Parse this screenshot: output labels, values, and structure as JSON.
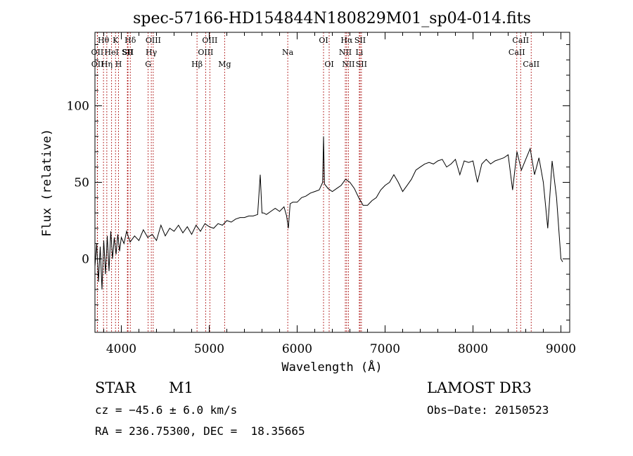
{
  "chart_data": {
    "type": "line",
    "title": "spec-57166-HD154844N180829M01_sp04-014.fits",
    "xlabel": "Wavelength (Å)",
    "ylabel": "Flux (relative)",
    "xlim": [
      3700,
      9100
    ],
    "ylim": [
      -48,
      148
    ],
    "xticks": [
      4000,
      5000,
      6000,
      7000,
      8000,
      9000
    ],
    "yticks": [
      0,
      50,
      100
    ],
    "line_color": "#000000",
    "marker_color": "#b22222",
    "series": [
      {
        "name": "flux",
        "x": [
          3700,
          3720,
          3740,
          3760,
          3780,
          3800,
          3820,
          3840,
          3860,
          3880,
          3900,
          3920,
          3940,
          3960,
          3980,
          4000,
          4030,
          4060,
          4100,
          4150,
          4200,
          4250,
          4300,
          4350,
          4400,
          4450,
          4500,
          4550,
          4600,
          4650,
          4700,
          4750,
          4800,
          4850,
          4900,
          4950,
          5000,
          5050,
          5100,
          5150,
          5200,
          5250,
          5300,
          5350,
          5400,
          5450,
          5500,
          5550,
          5580,
          5600,
          5620,
          5650,
          5700,
          5750,
          5800,
          5850,
          5880,
          5900,
          5920,
          5950,
          6000,
          6050,
          6100,
          6150,
          6200,
          6250,
          6290,
          6300,
          6310,
          6350,
          6400,
          6450,
          6500,
          6550,
          6600,
          6650,
          6700,
          6750,
          6800,
          6850,
          6900,
          6950,
          7000,
          7050,
          7100,
          7150,
          7200,
          7250,
          7300,
          7350,
          7400,
          7450,
          7500,
          7550,
          7600,
          7650,
          7700,
          7750,
          7800,
          7850,
          7900,
          7950,
          8000,
          8050,
          8100,
          8150,
          8200,
          8250,
          8300,
          8350,
          8400,
          8450,
          8500,
          8550,
          8600,
          8650,
          8700,
          8750,
          8800,
          8850,
          8900,
          8950,
          9000,
          9020
        ],
        "y": [
          -5,
          10,
          -15,
          8,
          -20,
          12,
          -10,
          15,
          -8,
          18,
          0,
          14,
          3,
          16,
          5,
          14,
          10,
          18,
          11,
          15,
          12,
          19,
          14,
          16,
          12,
          22,
          15,
          20,
          18,
          22,
          17,
          21,
          16,
          22,
          18,
          23,
          21,
          20,
          23,
          22,
          25,
          24,
          26,
          27,
          27,
          28,
          28,
          29,
          55,
          30,
          30,
          29,
          31,
          33,
          31,
          34,
          28,
          20,
          36,
          37,
          37,
          40,
          41,
          43,
          44,
          45,
          50,
          80,
          49,
          46,
          44,
          46,
          48,
          52,
          50,
          46,
          40,
          35,
          35,
          38,
          40,
          45,
          48,
          50,
          55,
          50,
          44,
          48,
          52,
          58,
          60,
          62,
          63,
          62,
          64,
          65,
          60,
          62,
          65,
          55,
          64,
          63,
          64,
          50,
          62,
          65,
          62,
          64,
          65,
          66,
          68,
          45,
          70,
          58,
          65,
          72,
          55,
          66,
          50,
          20,
          64,
          40,
          0,
          -2
        ]
      }
    ],
    "spectral_lines": [
      {
        "label": "Hθ",
        "wavelength": 3797,
        "row": 0
      },
      {
        "label": "OII",
        "wavelength": 3727,
        "row": 1
      },
      {
        "label": "OII",
        "wavelength": 3729,
        "row": 2
      },
      {
        "label": "K",
        "wavelength": 3934,
        "row": 0
      },
      {
        "label": "HeI",
        "wavelength": 3889,
        "row": 1
      },
      {
        "label": "Hη",
        "wavelength": 3835,
        "row": 2
      },
      {
        "label": "SII",
        "wavelength": 4069,
        "row": 1
      },
      {
        "label": "H",
        "wavelength": 3968,
        "row": 2
      },
      {
        "label": "Hδ",
        "wavelength": 4102,
        "row": 0
      },
      {
        "label": "SII",
        "wavelength": 4076,
        "row": 1
      },
      {
        "label": "OIII",
        "wavelength": 4363,
        "row": 0
      },
      {
        "label": "Hγ",
        "wavelength": 4341,
        "row": 1
      },
      {
        "label": "G",
        "wavelength": 4305,
        "row": 2
      },
      {
        "label": "OIII",
        "wavelength": 5007,
        "row": 0
      },
      {
        "label": "OIII",
        "wavelength": 4959,
        "row": 1
      },
      {
        "label": "Hβ",
        "wavelength": 4861,
        "row": 2
      },
      {
        "label": "Mg",
        "wavelength": 5175,
        "row": 2
      },
      {
        "label": "Na",
        "wavelength": 5893,
        "row": 1
      },
      {
        "label": "OI",
        "wavelength": 6300,
        "row": 0
      },
      {
        "label": "OI",
        "wavelength": 6364,
        "row": 2
      },
      {
        "label": "Hα",
        "wavelength": 6563,
        "row": 0
      },
      {
        "label": "NII",
        "wavelength": 6548,
        "row": 1
      },
      {
        "label": "NII",
        "wavelength": 6583,
        "row": 2
      },
      {
        "label": "SII",
        "wavelength": 6716,
        "row": 0
      },
      {
        "label": "Li",
        "wavelength": 6707,
        "row": 1
      },
      {
        "label": "SII",
        "wavelength": 6731,
        "row": 2
      },
      {
        "label": "CaII",
        "wavelength": 8542,
        "row": 0
      },
      {
        "label": "CaII",
        "wavelength": 8498,
        "row": 1
      },
      {
        "label": "CaII",
        "wavelength": 8662,
        "row": 2
      }
    ]
  },
  "info": {
    "object_class": "STAR",
    "subclass": "M1",
    "survey": "LAMOST DR3",
    "redshift": "cz = −45.6 ± 6.0 km/s",
    "obs_date": "Obs−Date: 20150523",
    "coordinates": "RA = 236.75300, DEC =  18.35665"
  }
}
